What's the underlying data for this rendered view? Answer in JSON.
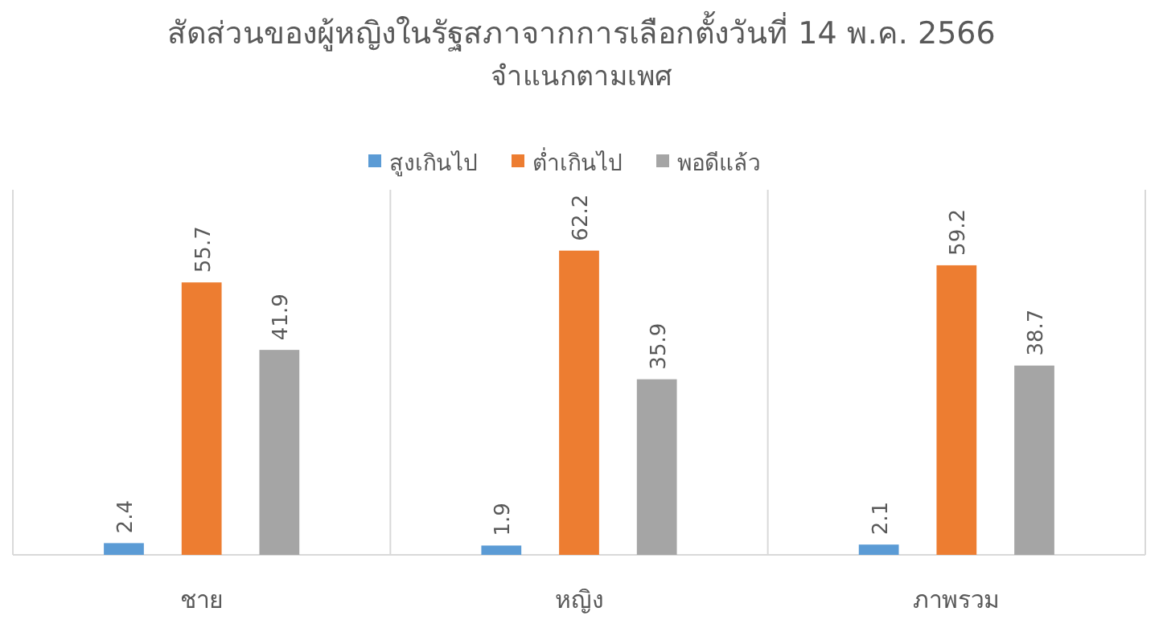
{
  "chart_data": {
    "type": "bar",
    "title": "สัดส่วนของผู้หญิงในรัฐสภาจากการเลือกตั้งวันที่ 14 พ.ค. 2566",
    "subtitle": "จำแนกตามเพศ",
    "categories": [
      "ชาย",
      "หญิง",
      "ภาพรวม"
    ],
    "series": [
      {
        "name": "สูงเกินไป",
        "color": "#5b9bd5",
        "values": [
          2.4,
          1.9,
          2.1
        ]
      },
      {
        "name": "ต่ำเกินไป",
        "color": "#ed7d31",
        "values": [
          55.7,
          62.2,
          59.2
        ]
      },
      {
        "name": "พอดีแล้ว",
        "color": "#a5a5a5",
        "values": [
          41.9,
          35.9,
          38.7
        ]
      }
    ],
    "data_labels": true,
    "legend": "top",
    "grid": "x"
  }
}
